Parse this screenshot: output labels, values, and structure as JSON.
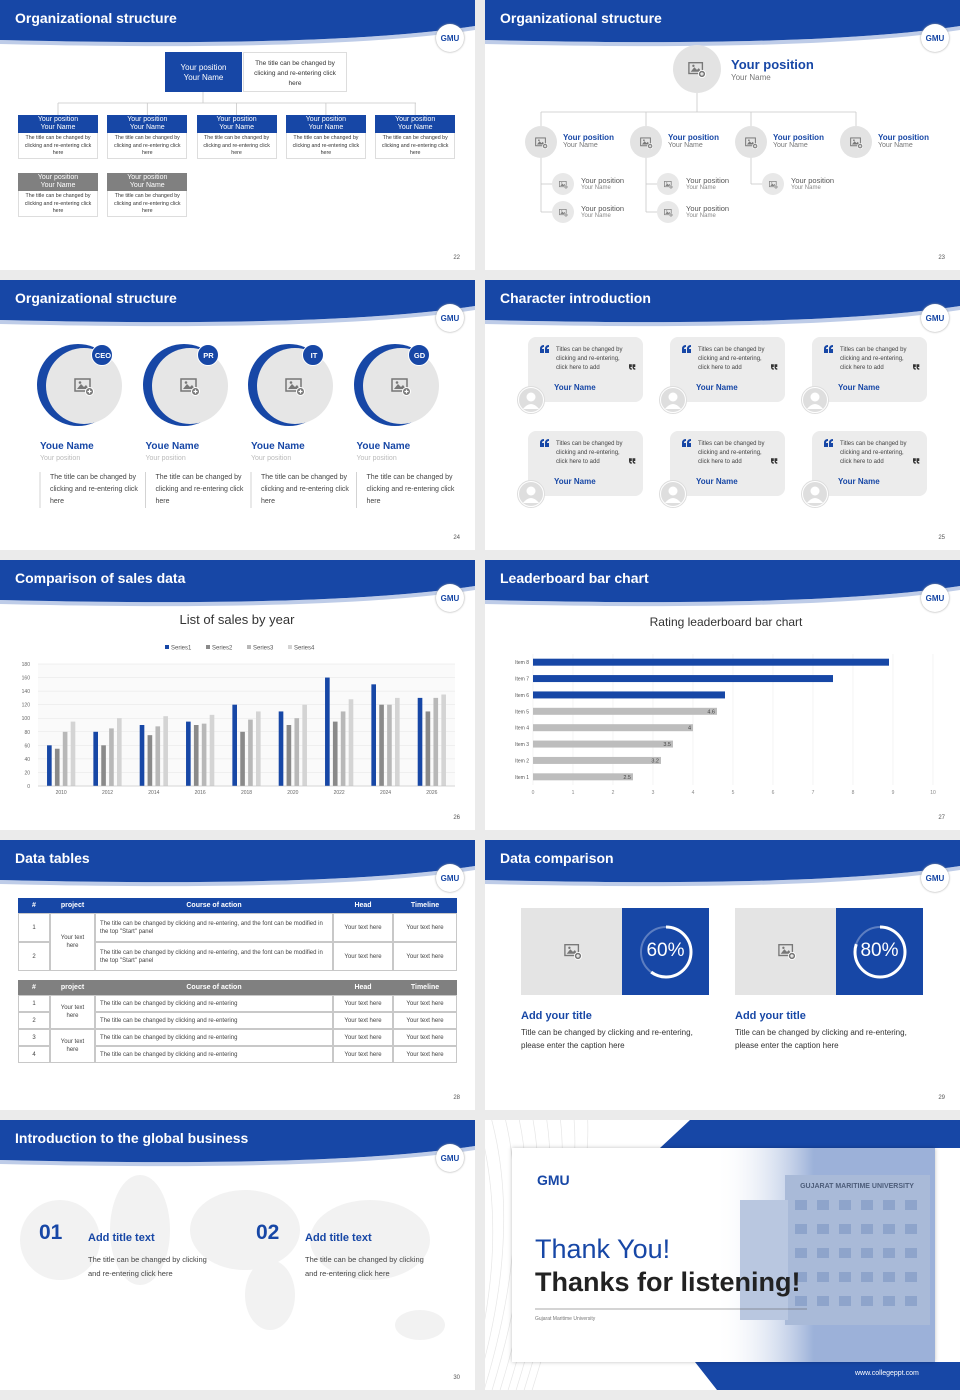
{
  "logo": "GMU",
  "slides": [
    {
      "title": "Organizational structure",
      "page": "22",
      "top": {
        "position": "Your position",
        "name": "Your Name",
        "note": "The title can be changed by clicking and re-entering click here"
      },
      "row1": [
        {
          "position": "Your position",
          "name": "Your Name",
          "note": "The title can be changed by clicking and re-entering click here"
        },
        {
          "position": "Your position",
          "name": "Your Name",
          "note": "The title can be changed by clicking and re-entering click here"
        },
        {
          "position": "Your position",
          "name": "Your Name",
          "note": "The title can be changed by clicking and re-entering click here"
        },
        {
          "position": "Your position",
          "name": "Your Name",
          "note": "The title can be changed by clicking and re-entering click here"
        },
        {
          "position": "Your position",
          "name": "Your Name",
          "note": "The title can be changed by clicking and re-entering click here"
        }
      ],
      "row2": [
        {
          "position": "Your position",
          "name": "Your Name",
          "note": "The title can be changed by clicking and re-entering click here"
        },
        {
          "position": "Your position",
          "name": "Your Name",
          "note": "The title can be changed by clicking and re-entering click here"
        }
      ]
    },
    {
      "title": "Organizational structure",
      "page": "23",
      "top": {
        "position": "Your position",
        "name": "Your Name"
      },
      "branches": [
        {
          "position": "Your position",
          "name": "Your Name",
          "children": [
            {
              "position": "Your position",
              "name": "Your Name"
            },
            {
              "position": "Your position",
              "name": "Your Name"
            }
          ]
        },
        {
          "position": "Your position",
          "name": "Your Name",
          "children": [
            {
              "position": "Your position",
              "name": "Your Name"
            },
            {
              "position": "Your position",
              "name": "Your Name"
            }
          ]
        },
        {
          "position": "Your position",
          "name": "Your Name",
          "children": [
            {
              "position": "Your position",
              "name": "Your Name"
            }
          ]
        },
        {
          "position": "Your position",
          "name": "Your Name",
          "children": []
        }
      ]
    },
    {
      "title": "Organizational structure",
      "page": "24",
      "members": [
        {
          "badge": "CEO",
          "name": "Youe Name",
          "position": "Your position",
          "note": "The title can be changed by clicking and re-entering click here"
        },
        {
          "badge": "PR",
          "name": "Youe Name",
          "position": "Your position",
          "note": "The title can be changed by clicking and re-entering click here"
        },
        {
          "badge": "IT",
          "name": "Youe Name",
          "position": "Your position",
          "note": "The title can be changed by clicking and re-entering click here"
        },
        {
          "badge": "GD",
          "name": "Youe Name",
          "position": "Your position",
          "note": "The title can be changed by clicking and re-entering click here"
        }
      ]
    },
    {
      "title": "Character introduction",
      "page": "25",
      "cards": [
        {
          "quote": "Titles can be changed by clicking and re-entering, click here to add",
          "name": "Your Name"
        },
        {
          "quote": "Titles can be changed by clicking and re-entering, click here to add",
          "name": "Your Name"
        },
        {
          "quote": "Titles can be changed by clicking and re-entering, click here to add",
          "name": "Your Name"
        },
        {
          "quote": "Titles can be changed by clicking and re-entering, click here to add",
          "name": "Your Name"
        },
        {
          "quote": "Titles can be changed by clicking and re-entering, click here to add",
          "name": "Your Name"
        },
        {
          "quote": "Titles can be changed by clicking and re-entering, click here to add",
          "name": "Your Name"
        }
      ]
    },
    {
      "title": "Comparison of sales data",
      "page": "26",
      "chart_data": {
        "type": "bar",
        "title": "List of sales by year",
        "categories": [
          "2010",
          "2012",
          "2014",
          "2016",
          "2018",
          "2020",
          "2022",
          "2024",
          "2026"
        ],
        "series": [
          {
            "name": "Series1",
            "color": "#1747a6",
            "values": [
              60,
              80,
              90,
              95,
              120,
              110,
              160,
              150,
              130
            ]
          },
          {
            "name": "Series2",
            "color": "#8a8a8a",
            "values": [
              55,
              60,
              75,
              90,
              80,
              90,
              95,
              120,
              110
            ]
          },
          {
            "name": "Series3",
            "color": "#b8b8b8",
            "values": [
              80,
              85,
              88,
              92,
              98,
              100,
              110,
              120,
              130
            ]
          },
          {
            "name": "Series4",
            "color": "#d4d4d4",
            "values": [
              95,
              100,
              103,
              105,
              110,
              120,
              128,
              130,
              135
            ]
          }
        ],
        "ylim": [
          0,
          180
        ],
        "yticks": [
          0,
          20,
          40,
          60,
          80,
          100,
          120,
          140,
          160,
          180
        ],
        "grid": true
      }
    },
    {
      "title": "Leaderboard bar chart",
      "page": "27",
      "chart_data": {
        "type": "bar",
        "orientation": "horizontal",
        "title": "Rating leaderboard bar chart",
        "categories": [
          "Item 1",
          "Item 2",
          "Item 3",
          "Item 4",
          "Item 5",
          "Item 6",
          "Item 7",
          "Item 8"
        ],
        "values": [
          2.5,
          3.2,
          3.5,
          4,
          4.6,
          4.8,
          7.5,
          8.9
        ],
        "colors": [
          "#bdbdbd",
          "#bdbdbd",
          "#bdbdbd",
          "#bdbdbd",
          "#bdbdbd",
          "#1747a6",
          "#1747a6",
          "#1747a6"
        ],
        "data_labels": [
          true,
          true,
          true,
          true,
          true,
          false,
          false,
          false
        ],
        "xlim": [
          0,
          10
        ],
        "xticks": [
          0,
          1,
          2,
          3,
          4,
          5,
          6,
          7,
          8,
          9,
          10
        ],
        "grid": true
      }
    },
    {
      "title": "Data tables",
      "page": "28",
      "tables": [
        {
          "headers": [
            "#",
            "project",
            "Course of action",
            "Head",
            "Timeline"
          ],
          "groups": [
            {
              "project": "Your text here",
              "rows": [
                {
                  "num": "1",
                  "course": "The title can be changed by clicking and re-entering, and the font can be modified in the top \"Start\" panel",
                  "head": "Your text here",
                  "timeline": "Your text here"
                },
                {
                  "num": "2",
                  "course": "The title can be changed by clicking and re-entering, and the font can be modified in the top \"Start\" panel",
                  "head": "Your text here",
                  "timeline": "Your text here"
                }
              ]
            }
          ]
        },
        {
          "headers": [
            "#",
            "project",
            "Course of action",
            "Head",
            "Timeline"
          ],
          "groups": [
            {
              "project": "Your text here",
              "rows": [
                {
                  "num": "1",
                  "course": "The title can be changed by clicking and re-entering",
                  "head": "Your text here",
                  "timeline": "Your text here"
                },
                {
                  "num": "2",
                  "course": "The title can be changed by clicking and re-entering",
                  "head": "Your text here",
                  "timeline": "Your text here"
                }
              ]
            },
            {
              "project": "Your text here",
              "rows": [
                {
                  "num": "3",
                  "course": "The title can be changed by clicking and re-entering",
                  "head": "Your text here",
                  "timeline": "Your text here"
                },
                {
                  "num": "4",
                  "course": "The title can be changed by clicking and re-entering",
                  "head": "Your text here",
                  "timeline": "Your text here"
                }
              ]
            }
          ]
        }
      ]
    },
    {
      "title": "Data comparison",
      "page": "29",
      "items": [
        {
          "percent": {
            "value": 60,
            "label": "60%"
          },
          "heading": "Add your title",
          "caption": "Title can be changed by clicking and re-entering, please enter the caption here"
        },
        {
          "percent": {
            "value": 80,
            "label": "80%"
          },
          "heading": "Add your title",
          "caption": "Title can be changed by clicking and re-entering, please enter the caption here"
        }
      ]
    },
    {
      "title": "Introduction to the global business",
      "page": "30",
      "items": [
        {
          "number": "01",
          "heading": "Add title text",
          "body": "The title can be changed by clicking and re-entering click here"
        },
        {
          "number": "02",
          "heading": "Add title text",
          "body": "The title can be changed by clicking and re-entering click here"
        }
      ]
    },
    {
      "thanks": "Thank You!",
      "subtitle": "Thanks for listening!",
      "institution": "Gujarat Maritime University",
      "sign": "GUJARAT MARITIME UNIVERSITY",
      "website": "www.collegeppt.com"
    }
  ]
}
